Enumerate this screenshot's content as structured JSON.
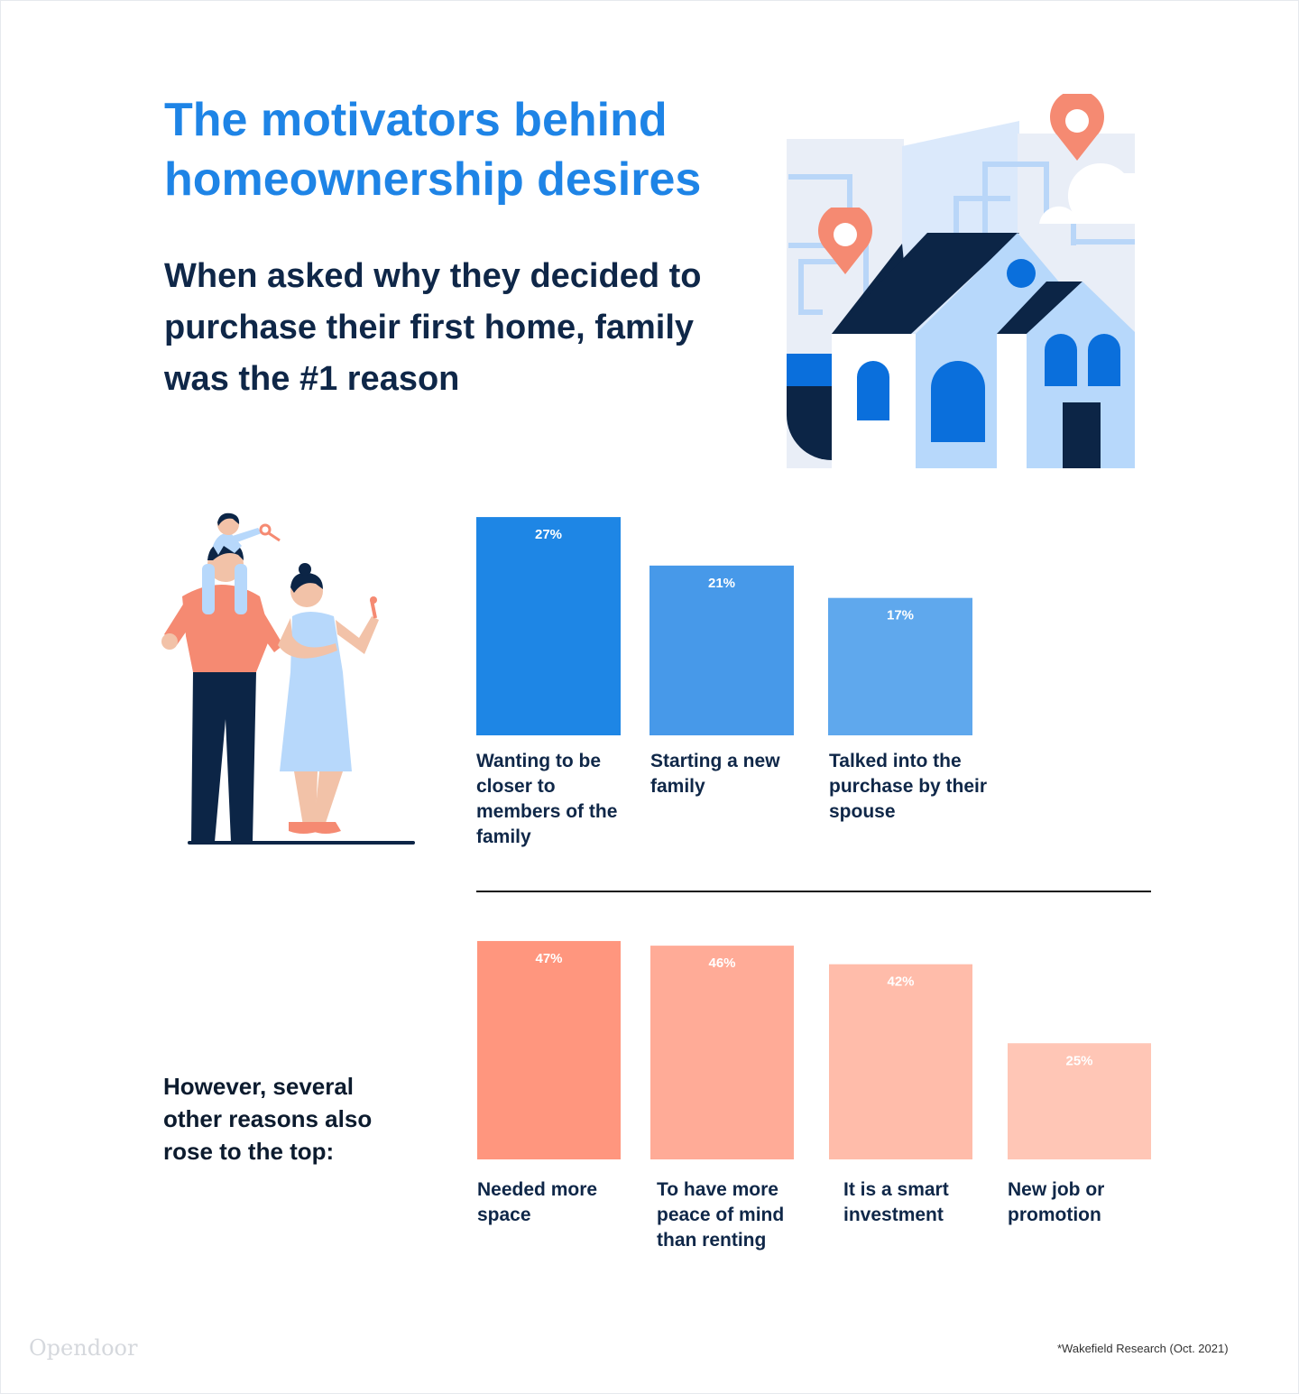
{
  "header": {
    "title": "The motivators behind homeownership desires",
    "subtitle": "When asked why they decided to purchase their first home, family was the #1 reason"
  },
  "section2": {
    "heading": "However, several other reasons also rose to the top:"
  },
  "footer": {
    "brand": "Opendoor",
    "source": "*Wakefield Research (Oct. 2021)"
  },
  "chart_data": [
    {
      "type": "bar",
      "categories": [
        "Wanting to be closer to members of the family",
        "Starting a new family",
        "Talked into the purchase by their spouse"
      ],
      "values": [
        27,
        21,
        17
      ],
      "value_labels": [
        "27%",
        "21%",
        "17%"
      ],
      "colors": [
        "#1e86e5",
        "#4799e9",
        "#5fa8ed"
      ],
      "unit": "%",
      "axes": "hidden",
      "grid": false
    },
    {
      "type": "bar",
      "categories": [
        "Needed more space",
        "To have more peace of mind than renting",
        "It is a smart investment",
        "New job or promotion"
      ],
      "values": [
        47,
        46,
        42,
        25
      ],
      "value_labels": [
        "47%",
        "46%",
        "42%",
        "25%"
      ],
      "colors": [
        "#ff967e",
        "#ffab97",
        "#ffbcaa",
        "#ffc6b6"
      ],
      "unit": "%",
      "axes": "hidden",
      "grid": false
    }
  ]
}
